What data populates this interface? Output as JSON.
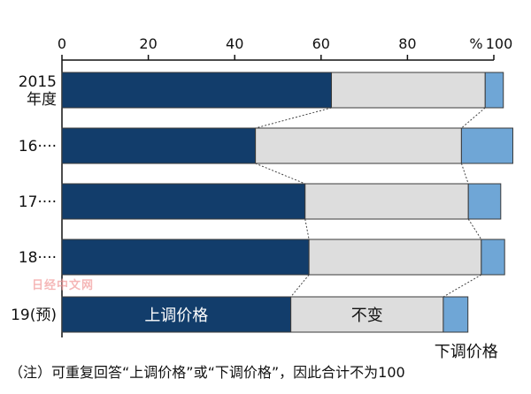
{
  "chart_data": {
    "type": "bar",
    "orientation": "horizontal",
    "stacked": true,
    "axis": {
      "ticks": [
        0,
        20,
        40,
        60,
        80,
        100
      ],
      "tick_labels": [
        "0",
        "20",
        "40",
        "60",
        "80",
        "100"
      ],
      "unit": "%",
      "range": [
        0,
        100
      ],
      "position": "top"
    },
    "categories": [
      "2015\n年度",
      "16····",
      "17····",
      "18····",
      "19(预)"
    ],
    "series": [
      {
        "name": "上调价格",
        "values": [
          62.4,
          44.8,
          56.3,
          57.2,
          53.0
        ],
        "color": "#123d6b",
        "label_color": "#ffffff"
      },
      {
        "name": "不变",
        "values": [
          35.6,
          47.7,
          37.8,
          39.9,
          35.3
        ],
        "color": "#dddddd",
        "label_color": "#111111"
      },
      {
        "name": "下调价格",
        "values": [
          4.2,
          11.9,
          7.5,
          5.4,
          5.7
        ],
        "color": "#6fa6d6",
        "label_color": "#111111"
      }
    ],
    "connector_lines": true,
    "legend": "none",
    "grid": false
  },
  "watermark": "日经中文网",
  "note": "（注）可重复回答“上调价格”或“下调价格”，因此合计不为100"
}
